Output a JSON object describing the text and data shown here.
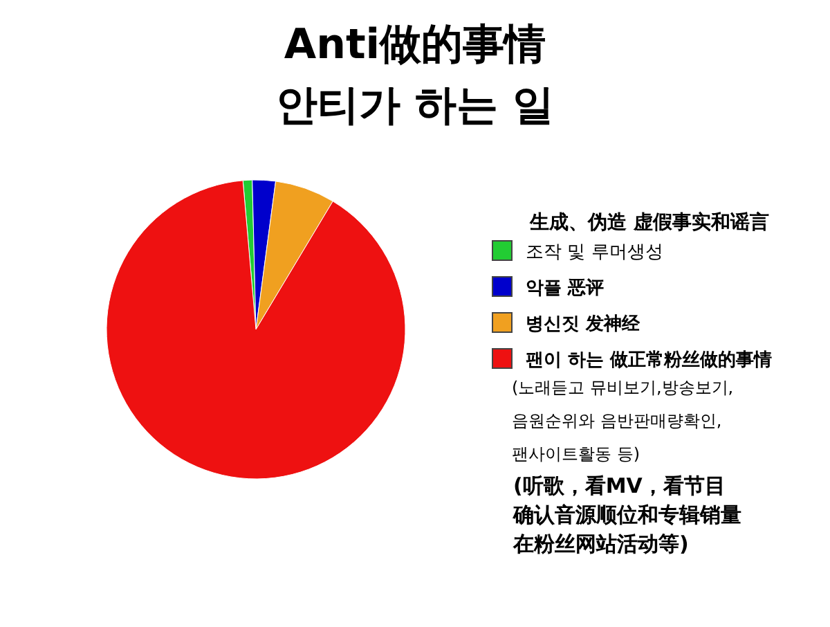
{
  "chart_data": {
    "type": "pie",
    "title": "Anti做的事情",
    "subtitle": "안티가 하는 일",
    "legend_title": "生成、伪造 虚假事实和谣言",
    "legend": "right",
    "categories": [
      "조작 및 루머생성",
      "악플 恶评",
      "병신짓 发神经",
      "팬이 하는 做正常粉丝做的事情"
    ],
    "values": [
      1,
      2.5,
      6.5,
      90
    ],
    "colors": [
      "#22cc33",
      "#0000cc",
      "#f0a020",
      "#ee1111"
    ],
    "annotations": [
      "(노래듣고 뮤비보기,방송보기,",
      "음원순위와 음반판매량확인,",
      "팬사이트활동 등)",
      "(听歌，看MV，看节目",
      "确认音源顺位和专辑销量",
      "在粉丝网站活动等)"
    ]
  }
}
